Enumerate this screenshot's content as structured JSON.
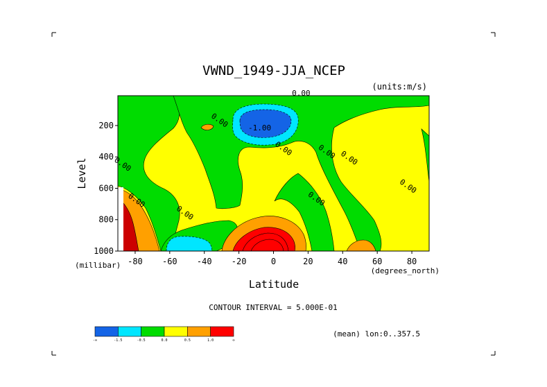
{
  "chart_data": {
    "type": "heatmap",
    "title": "VWND_1949-JJA_NCEP",
    "units_label": "(units:m/s)",
    "xlabel": "Latitude",
    "x_units": "(degrees_north)",
    "ylabel": "Level",
    "y_units": "(millibar)",
    "x_ticks": [
      "-80",
      "-60",
      "-40",
      "-20",
      "0",
      "20",
      "40",
      "60",
      "80"
    ],
    "x_tick_values": [
      -80,
      -60,
      -40,
      -20,
      0,
      20,
      40,
      60,
      80
    ],
    "y_ticks": [
      "200",
      "400",
      "600",
      "800",
      "1000"
    ],
    "y_tick_values": [
      200,
      400,
      600,
      800,
      1000
    ],
    "xlim": [
      -90,
      90
    ],
    "ylim": [
      1000,
      10
    ],
    "contour_interval_text": "CONTOUR INTERVAL = 5.000E-01",
    "subset_text": "(mean) lon:0..357.5",
    "contour_labels": [
      {
        "text": "0.00",
        "lat": 16,
        "lev": 10
      },
      {
        "text": "0.00",
        "lat": -32,
        "lev": 180
      },
      {
        "text": "-1.00",
        "lat": -8,
        "lev": 230
      },
      {
        "text": "0.00",
        "lat": 5,
        "lev": 360
      },
      {
        "text": "0.00",
        "lat": 30,
        "lev": 380
      },
      {
        "text": "0.00",
        "lat": 43,
        "lev": 420
      },
      {
        "text": "0.00",
        "lat": -88,
        "lev": 460
      },
      {
        "text": "0.00",
        "lat": 77,
        "lev": 600
      },
      {
        "text": "0.00",
        "lat": 24,
        "lev": 680
      },
      {
        "text": "0.00",
        "lat": -52,
        "lev": 770
      },
      {
        "text": "0.00",
        "lat": -80,
        "lev": 690
      }
    ],
    "colorbar": {
      "colors": [
        "#1464e6",
        "#00e6ff",
        "#00dc00",
        "#ffff00",
        "#ffa000",
        "#ff0000"
      ],
      "tick_labels": [
        "-∞",
        "-1.5",
        "-0.5",
        "0.0",
        "0.5",
        "1.0",
        "∞"
      ]
    }
  }
}
